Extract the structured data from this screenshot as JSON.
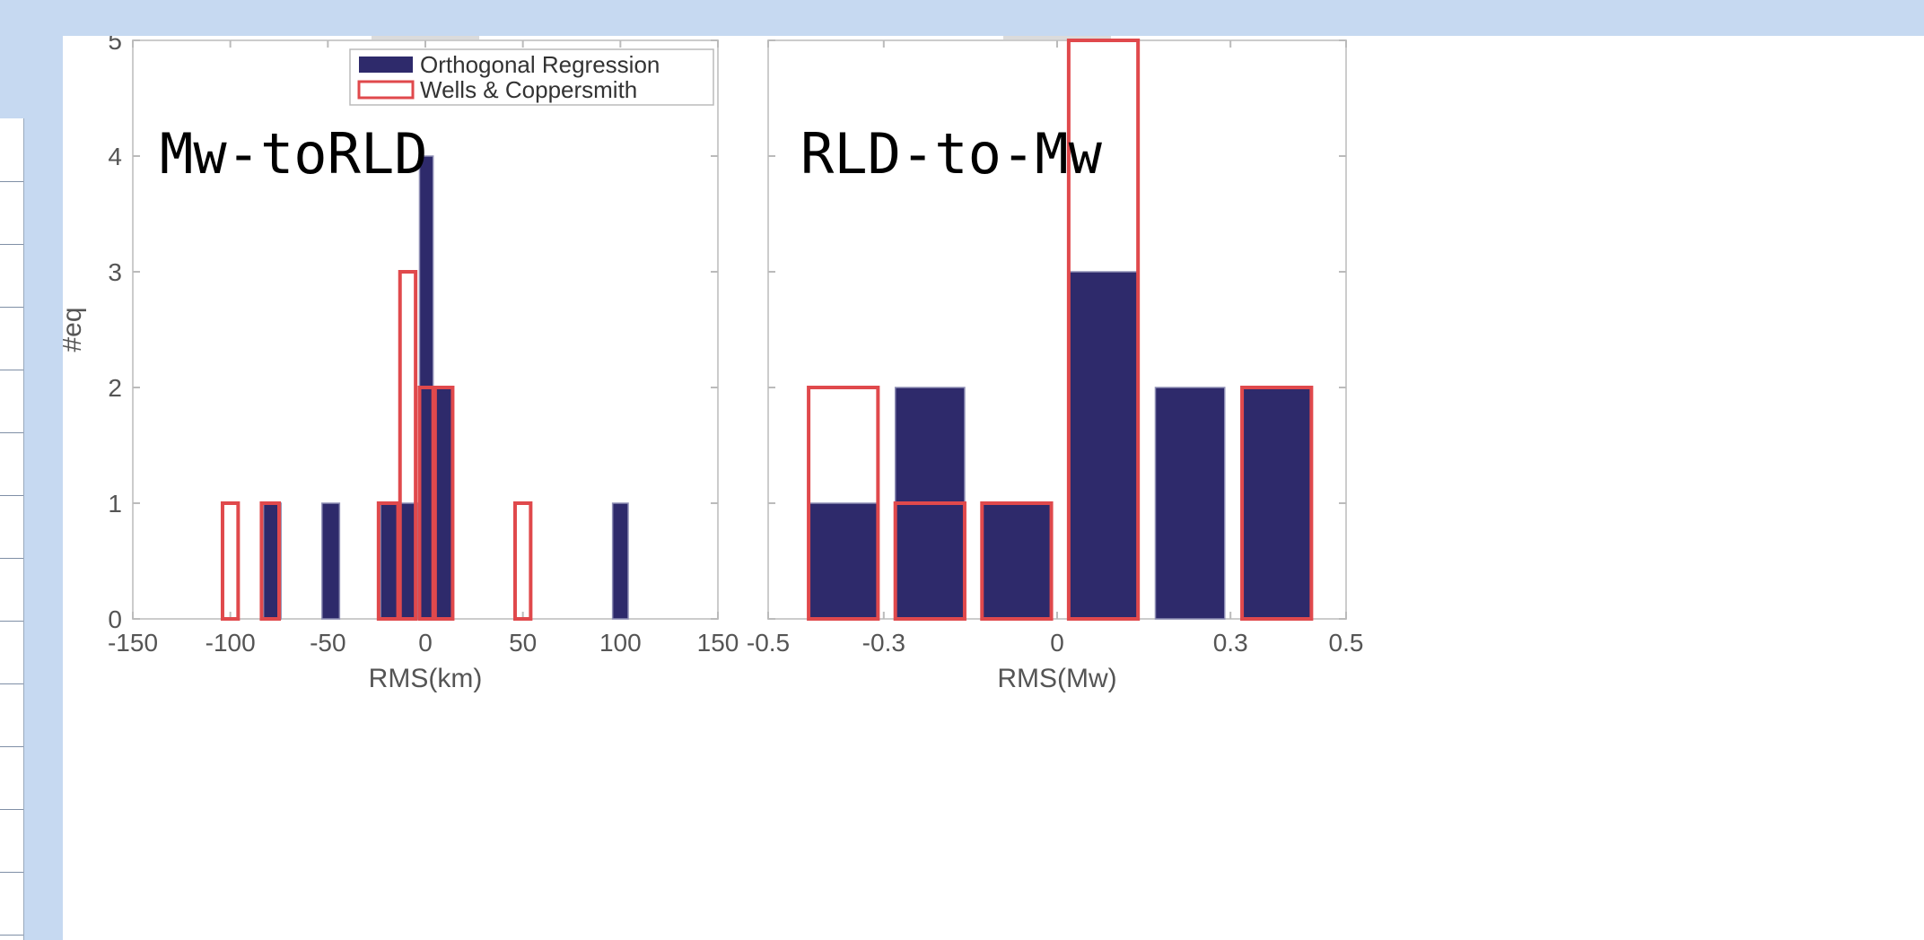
{
  "colors": {
    "background": "#c6d9f1",
    "orthogonal_fill": "#2e2a6b",
    "wells_edge": "#e0494c",
    "axis": "#cccccc",
    "tick_text": "#555555"
  },
  "chart_data": [
    {
      "type": "bar",
      "annotation": "Mw-toRLD",
      "xlabel": "RMS(km)",
      "ylabel": "#eq",
      "xlim": [
        -150,
        150
      ],
      "ylim": [
        0,
        5
      ],
      "xticks": [
        "-150",
        "-100",
        "-50",
        "0",
        "50",
        "100",
        "150"
      ],
      "xtick_values": [
        -150,
        -100,
        -50,
        0,
        50,
        100,
        150
      ],
      "yticks": [
        "0",
        "1",
        "2",
        "3",
        "4",
        "5"
      ],
      "ytick_values": [
        0,
        1,
        2,
        3,
        4,
        5
      ],
      "legend": {
        "placement": "top-right",
        "entries": [
          "Orthogonal Regression",
          "Wells & Coppersmith"
        ]
      },
      "series": [
        {
          "name": "Orthogonal Regression",
          "style": "filled",
          "bars": [
            {
              "x0": -83,
              "x1": -74,
              "value": 1
            },
            {
              "x0": -53,
              "x1": -44,
              "value": 1
            },
            {
              "x0": -23,
              "x1": -14,
              "value": 1
            },
            {
              "x0": -13,
              "x1": -4,
              "value": 1
            },
            {
              "x0": -3,
              "x1": 4,
              "value": 4
            },
            {
              "x0": 4,
              "x1": 14,
              "value": 2
            },
            {
              "x0": 96,
              "x1": 104,
              "value": 1
            }
          ]
        },
        {
          "name": "Wells & Coppersmith",
          "style": "outline",
          "bars": [
            {
              "x0": -104,
              "x1": -96,
              "value": 1
            },
            {
              "x0": -84,
              "x1": -75,
              "value": 1
            },
            {
              "x0": -24,
              "x1": -14,
              "value": 1
            },
            {
              "x0": -13,
              "x1": -5,
              "value": 3
            },
            {
              "x0": -3,
              "x1": 5,
              "value": 2
            },
            {
              "x0": 4,
              "x1": 14,
              "value": 2
            },
            {
              "x0": 46,
              "x1": 54,
              "value": 1
            }
          ]
        }
      ]
    },
    {
      "type": "bar",
      "annotation": "RLD-to-Mw",
      "xlabel": "RMS(Mw)",
      "ylabel": "",
      "xlim": [
        -0.5,
        0.5
      ],
      "ylim": [
        0,
        5
      ],
      "xticks": [
        "-0.5",
        "-0.3",
        "0",
        "0.3",
        "0.5"
      ],
      "xtick_values": [
        -0.5,
        -0.3,
        0,
        0.3,
        0.5
      ],
      "series": [
        {
          "name": "Orthogonal Regression",
          "style": "filled",
          "bars": [
            {
              "x0": -0.43,
              "x1": -0.31,
              "value": 1
            },
            {
              "x0": -0.28,
              "x1": -0.16,
              "value": 2
            },
            {
              "x0": -0.13,
              "x1": -0.01,
              "value": 1
            },
            {
              "x0": 0.02,
              "x1": 0.14,
              "value": 3
            },
            {
              "x0": 0.17,
              "x1": 0.29,
              "value": 2
            },
            {
              "x0": 0.32,
              "x1": 0.44,
              "value": 2
            }
          ]
        },
        {
          "name": "Wells & Coppersmith",
          "style": "outline",
          "bars": [
            {
              "x0": -0.43,
              "x1": -0.31,
              "value": 2
            },
            {
              "x0": -0.28,
              "x1": -0.16,
              "value": 1
            },
            {
              "x0": -0.13,
              "x1": -0.01,
              "value": 1
            },
            {
              "x0": 0.02,
              "x1": 0.14,
              "value": 5
            },
            {
              "x0": 0.17,
              "x1": 0.29,
              "value": 0
            },
            {
              "x0": 0.32,
              "x1": 0.44,
              "value": 2
            }
          ]
        }
      ]
    }
  ]
}
